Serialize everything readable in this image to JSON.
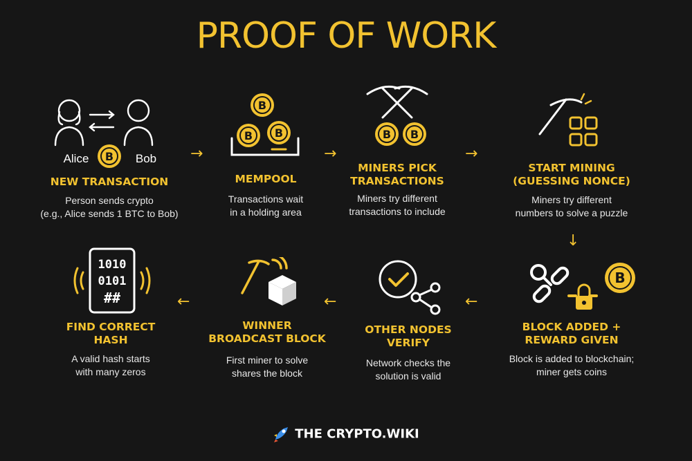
{
  "colors": {
    "background": "#161616",
    "accent": "#f2c230",
    "text": "#ffffff"
  },
  "title": "PROOF OF WORK",
  "steps": [
    {
      "icon": "alice-bob-icon",
      "label_alice": "Alice",
      "label_bob": "Bob",
      "heading": "NEW TRANSACTION",
      "description": "Person sends crypto\n(e.g., Alice sends 1 BTC to Bob)"
    },
    {
      "icon": "mempool-coins-icon",
      "heading": "MEMPOOL",
      "description": "Transactions wait\nin a holding area"
    },
    {
      "icon": "pickaxes-coins-icon",
      "heading": "MINERS PICK\nTRANSACTIONS",
      "description": "Miners try different\ntransactions to include"
    },
    {
      "icon": "pickaxe-grid-icon",
      "heading": "START MINING\n(GUESSING NONCE)",
      "description": "Miners try different\nnumbers to solve a puzzle"
    },
    {
      "icon": "chain-lock-coin-icon",
      "heading": "BLOCK ADDED +\nREWARD GIVEN",
      "description": "Block is added to blockchain;\nminer gets coins"
    },
    {
      "icon": "check-network-icon",
      "heading": "OTHER NODES\nVERIFY",
      "description": "Network checks the\nsolution is valid"
    },
    {
      "icon": "pickaxe-block-broadcast-icon",
      "heading": "WINNER\nBROADCAST BLOCK",
      "description": "First miner to solve\nshares the block"
    },
    {
      "icon": "hash-device-icon",
      "hash_lines": [
        "1010",
        "0101",
        "##"
      ],
      "heading": "FIND CORRECT\nHASH",
      "description": "A valid hash starts\nwith many zeros"
    }
  ],
  "arrows": {
    "right": "→",
    "down": "↓",
    "left": "←"
  },
  "brand": {
    "text": "THE  CRYPTO.WIKI",
    "icon": "rocket-icon"
  }
}
